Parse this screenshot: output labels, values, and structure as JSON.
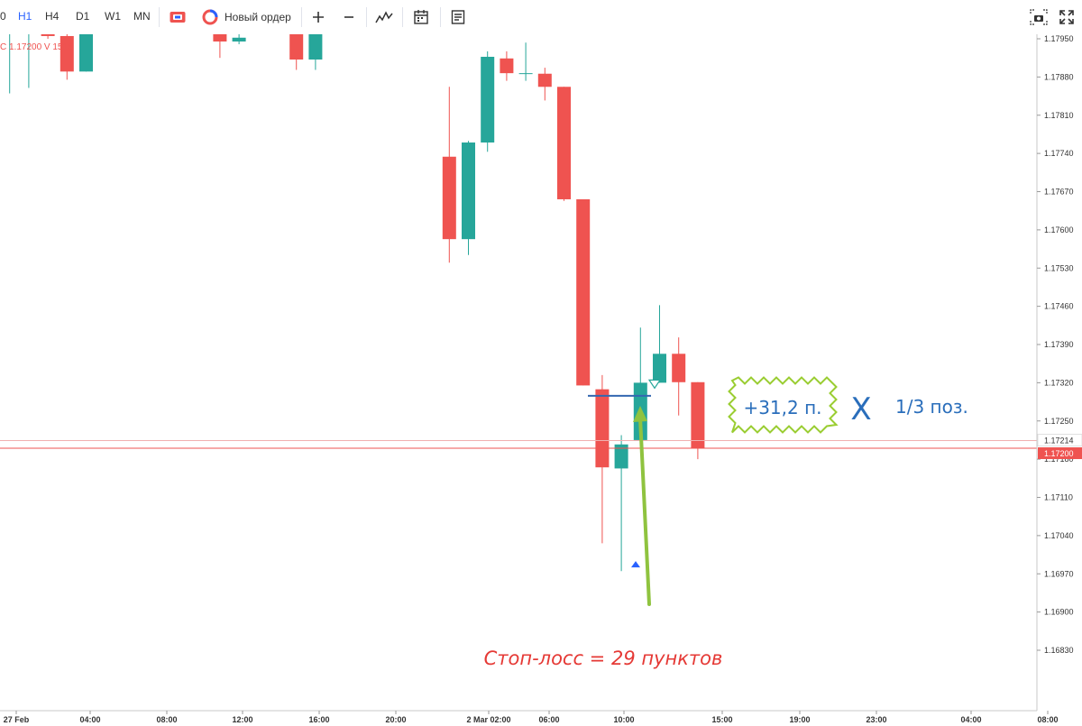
{
  "toolbar": {
    "timeframes": [
      {
        "label": "0",
        "active": false
      },
      {
        "label": "H1",
        "active": true
      },
      {
        "label": "H4",
        "active": false
      },
      {
        "label": "D1",
        "active": false
      },
      {
        "label": "W1",
        "active": false
      },
      {
        "label": "MN",
        "active": false
      }
    ],
    "new_order_label": "Новый ордер"
  },
  "ohlc_readout": "C 1.17200 V 1515",
  "chart_data": {
    "type": "candlestick",
    "y_ticks": [
      "1.17950",
      "1.17880",
      "1.17810",
      "1.17740",
      "1.17670",
      "1.17600",
      "1.17530",
      "1.17460",
      "1.17390",
      "1.17320",
      "1.17250",
      "1.17180",
      "1.17110",
      "1.17040",
      "1.16970",
      "1.16900",
      "1.16830"
    ],
    "x_ticks": [
      "27 Feb",
      "04:00",
      "08:00",
      "12:00",
      "16:00",
      "20:00",
      "2 Mar 02:00",
      "06:00",
      "10:00",
      "15:00",
      "19:00",
      "23:00",
      "04:00",
      "08:00"
    ],
    "ylim": [
      1.1681,
      1.1797
    ],
    "current_price": "1.17200",
    "current_price_value": 1.172,
    "bid_price": "1.17214",
    "bid_price_value": 1.17214,
    "colors": {
      "up": "#26a69a",
      "down": "#ef5350",
      "price_line": "#ef5350",
      "bid_line": "#f0b0b0"
    },
    "candles": [
      {
        "o": 1.1796,
        "h": 1.1797,
        "l": 1.1785,
        "c": 1.1796
      },
      {
        "o": 1.1796,
        "h": 1.1797,
        "l": 1.1786,
        "c": 1.1796
      },
      {
        "o": 1.1796,
        "h": 1.1797,
        "l": 1.1795,
        "c": 1.17955
      },
      {
        "o": 1.17955,
        "h": 1.1797,
        "l": 1.17875,
        "c": 1.1789
      },
      {
        "o": 1.1789,
        "h": 1.1797,
        "l": 1.1789,
        "c": 1.1796
      },
      {
        "o": 1.1796,
        "h": 1.1797,
        "l": 1.17915,
        "c": 1.17945
      },
      {
        "o": 1.17945,
        "h": 1.1797,
        "l": 1.1794,
        "c": 1.17952
      },
      {
        "o": 1.1796,
        "h": 1.1797,
        "l": 1.17893,
        "c": 1.17912
      },
      {
        "o": 1.17912,
        "h": 1.1797,
        "l": 1.17893,
        "c": 1.1796
      },
      {
        "o": 1.17734,
        "h": 1.17862,
        "l": 1.1754,
        "c": 1.17583
      },
      {
        "o": 1.17583,
        "h": 1.17763,
        "l": 1.17554,
        "c": 1.1776
      },
      {
        "o": 1.1776,
        "h": 1.17927,
        "l": 1.17743,
        "c": 1.17917
      },
      {
        "o": 1.17914,
        "h": 1.17927,
        "l": 1.17873,
        "c": 1.17887
      },
      {
        "o": 1.17887,
        "h": 1.17943,
        "l": 1.17873,
        "c": 1.17887
      },
      {
        "o": 1.17886,
        "h": 1.17897,
        "l": 1.17837,
        "c": 1.17862
      },
      {
        "o": 1.17862,
        "h": 1.17862,
        "l": 1.17653,
        "c": 1.17656
      },
      {
        "o": 1.17656,
        "h": 1.17656,
        "l": 1.17315,
        "c": 1.17315
      },
      {
        "o": 1.17308,
        "h": 1.17334,
        "l": 1.17026,
        "c": 1.17165
      },
      {
        "o": 1.17163,
        "h": 1.17224,
        "l": 1.16975,
        "c": 1.17207
      },
      {
        "o": 1.17215,
        "h": 1.17421,
        "l": 1.17211,
        "c": 1.1732
      },
      {
        "o": 1.1732,
        "h": 1.17462,
        "l": 1.1732,
        "c": 1.17373
      },
      {
        "o": 1.17373,
        "h": 1.17403,
        "l": 1.1726,
        "c": 1.17321
      },
      {
        "o": 1.17321,
        "h": 1.17321,
        "l": 1.1718,
        "c": 1.172
      }
    ]
  },
  "annotations": {
    "profit_label": "+31,2 п.",
    "close_mark": "X",
    "position_label": "1/3 поз.",
    "stop_loss_label": "Стоп-лосс = 29 пунктов",
    "entry_price": 1.17296,
    "colors": {
      "profit_border": "#9acd32",
      "profit_text": "#2a6ebb",
      "stop_text": "#e53935",
      "entry_line": "#3367b1",
      "arrow": "#8fc33f"
    }
  }
}
